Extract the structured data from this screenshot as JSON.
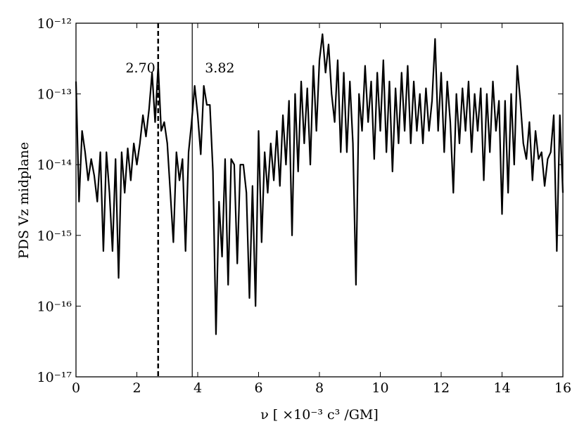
{
  "chart_data": {
    "type": "line",
    "xlabel": "ν [ ×10⁻³ c³ /GM]",
    "ylabel": "PDS Vz midplane",
    "yscale": "log",
    "xlim": [
      0,
      16
    ],
    "xticks": [
      0,
      2,
      4,
      6,
      8,
      10,
      12,
      14,
      16
    ],
    "ylim": [
      1e-17,
      1e-12
    ],
    "yticks": [
      {
        "value": 1e-17,
        "label": "10⁻¹⁷"
      },
      {
        "value": 1e-16,
        "label": "10⁻¹⁶"
      },
      {
        "value": 1e-15,
        "label": "10⁻¹⁵"
      },
      {
        "value": 1e-14,
        "label": "10⁻¹⁴"
      },
      {
        "value": 1e-13,
        "label": "10⁻¹³"
      },
      {
        "value": 1e-12,
        "label": "10⁻¹²"
      }
    ],
    "vlines": [
      {
        "x": 2.7,
        "label": "2.70",
        "style": "dashed"
      },
      {
        "x": 3.82,
        "label": "3.82",
        "style": "solid"
      }
    ],
    "series": [
      {
        "color": "#000000",
        "x": [
          0,
          0.1,
          0.2,
          0.3,
          0.4,
          0.5,
          0.6,
          0.7,
          0.8,
          0.9,
          1,
          1.1,
          1.2,
          1.3,
          1.4,
          1.5,
          1.6,
          1.7,
          1.8,
          1.9,
          2,
          2.1,
          2.2,
          2.3,
          2.4,
          2.5,
          2.6,
          2.7,
          2.8,
          2.9,
          3,
          3.1,
          3.2,
          3.3,
          3.4,
          3.5,
          3.6,
          3.7,
          3.8,
          3.9,
          4,
          4.1,
          4.2,
          4.3,
          4.4,
          4.5,
          4.6,
          4.7,
          4.8,
          4.9,
          5,
          5.1,
          5.2,
          5.3,
          5.4,
          5.5,
          5.6,
          5.7,
          5.8,
          5.9,
          6,
          6.1,
          6.2,
          6.3,
          6.4,
          6.5,
          6.6,
          6.7,
          6.8,
          6.9,
          7,
          7.1,
          7.2,
          7.3,
          7.4,
          7.5,
          7.6,
          7.7,
          7.8,
          7.9,
          8,
          8.1,
          8.2,
          8.3,
          8.4,
          8.5,
          8.6,
          8.7,
          8.8,
          8.9,
          9,
          9.1,
          9.2,
          9.3,
          9.4,
          9.5,
          9.6,
          9.7,
          9.8,
          9.9,
          10,
          10.1,
          10.2,
          10.3,
          10.4,
          10.5,
          10.6,
          10.7,
          10.8,
          10.9,
          11,
          11.1,
          11.2,
          11.3,
          11.4,
          11.5,
          11.6,
          11.7,
          11.8,
          11.9,
          12,
          12.1,
          12.2,
          12.3,
          12.4,
          12.5,
          12.6,
          12.7,
          12.8,
          12.9,
          13,
          13.1,
          13.2,
          13.3,
          13.4,
          13.5,
          13.6,
          13.7,
          13.8,
          13.9,
          14,
          14.1,
          14.2,
          14.3,
          14.4,
          14.5,
          14.6,
          14.7,
          14.8,
          14.9,
          15,
          15.1,
          15.2,
          15.3,
          15.4,
          15.5,
          15.6,
          15.7,
          15.8,
          15.9,
          16
        ],
        "values": [
          1.5e-13,
          3e-15,
          3e-14,
          1.5e-14,
          6e-15,
          1.2e-14,
          7e-15,
          3e-15,
          1.5e-14,
          6e-16,
          1.5e-14,
          4e-15,
          6e-16,
          1.2e-14,
          2.5e-16,
          1.5e-14,
          4e-15,
          1.7e-14,
          6e-15,
          2e-14,
          1e-14,
          2e-14,
          5e-14,
          2.5e-14,
          6e-14,
          2e-13,
          4e-14,
          2.5e-13,
          3e-14,
          4e-14,
          2e-14,
          4e-15,
          8e-16,
          1.5e-14,
          6e-15,
          1.2e-14,
          6e-16,
          1.5e-14,
          4e-14,
          1.3e-13,
          5e-14,
          1.4e-14,
          1.3e-13,
          7e-14,
          7e-14,
          8e-15,
          4e-17,
          3e-15,
          5e-16,
          1.2e-14,
          2e-16,
          1.2e-14,
          1e-14,
          4e-16,
          1e-14,
          1e-14,
          4e-15,
          1.3e-16,
          5e-15,
          1e-16,
          3e-14,
          8e-16,
          1.5e-14,
          4e-15,
          2e-14,
          6e-15,
          3e-14,
          5e-15,
          5e-14,
          1e-14,
          8e-14,
          1e-15,
          1e-13,
          8e-15,
          1.5e-13,
          2e-14,
          1.2e-13,
          1e-14,
          2.5e-13,
          3e-14,
          3e-13,
          7e-13,
          2e-13,
          5e-13,
          1e-13,
          4e-14,
          3e-13,
          1.5e-14,
          2e-13,
          1.5e-14,
          1.5e-13,
          2e-14,
          2e-16,
          1e-13,
          3e-14,
          2.5e-13,
          4e-14,
          1.5e-13,
          1.2e-14,
          2e-13,
          3e-14,
          3e-13,
          1.5e-14,
          1.5e-13,
          8e-15,
          1.2e-13,
          2e-14,
          2e-13,
          3e-14,
          2.5e-13,
          2e-14,
          1.5e-13,
          3e-14,
          1e-13,
          2e-14,
          1.2e-13,
          3e-14,
          8e-14,
          6e-13,
          3e-14,
          2e-13,
          1.5e-14,
          1.5e-13,
          4e-14,
          4e-15,
          1e-13,
          2e-14,
          1.2e-13,
          3e-14,
          1.5e-13,
          1.5e-14,
          1e-13,
          3e-14,
          1.2e-13,
          6e-15,
          1e-13,
          1.5e-14,
          1.5e-13,
          3e-14,
          8e-14,
          2e-15,
          8e-14,
          4e-15,
          1e-13,
          1e-14,
          2.5e-13,
          8e-14,
          2e-14,
          1.2e-14,
          4e-14,
          6e-15,
          3e-14,
          1.2e-14,
          1.5e-14,
          5e-15,
          1.2e-14,
          1.5e-14,
          5e-14,
          6e-16,
          5e-14,
          4e-15
        ]
      }
    ]
  }
}
